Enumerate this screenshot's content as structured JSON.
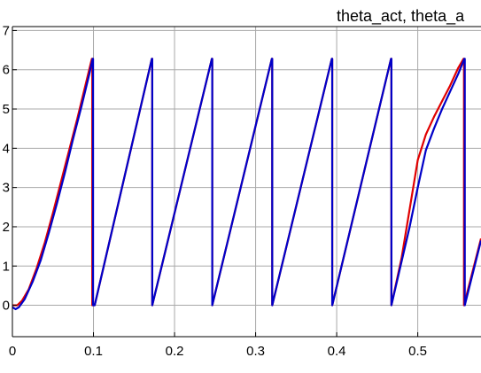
{
  "chart_data": {
    "type": "line",
    "title": "theta_act, theta_a",
    "xlabel": "",
    "ylabel": "",
    "xlim": [
      0,
      0.578
    ],
    "ylim": [
      -0.8,
      7.1
    ],
    "grid": true,
    "legend": "none",
    "x_ticks": [
      0,
      0.1,
      0.2,
      0.3,
      0.4,
      0.5
    ],
    "x_tick_labels": [
      "0",
      "0.1",
      "0.2",
      "0.3",
      "0.4",
      "0.5"
    ],
    "y_ticks": [
      0,
      1,
      2,
      3,
      4,
      5,
      6,
      7
    ],
    "y_tick_labels": [
      "0",
      "1",
      "2",
      "3",
      "4",
      "5",
      "6",
      "7"
    ],
    "series": [
      {
        "color": "#e00000",
        "x": [
          0,
          0.006,
          0.012,
          0.02,
          0.03,
          0.04,
          0.05,
          0.06,
          0.07,
          0.08,
          0.09,
          0.098,
          0.0985,
          0.0985,
          0.1015,
          0.172,
          0.1725,
          0.1725,
          0.246,
          0.2465,
          0.2465,
          0.32,
          0.3205,
          0.3205,
          0.394,
          0.3945,
          0.3945,
          0.467,
          0.4675,
          0.4675,
          0.48,
          0.5,
          0.51,
          0.52,
          0.53,
          0.54,
          0.55,
          0.5565,
          0.557,
          0.557,
          0.578
        ],
        "y": [
          0.0,
          0.0,
          0.12,
          0.4,
          0.95,
          1.6,
          2.35,
          3.15,
          3.95,
          4.75,
          5.6,
          6.28,
          6.28,
          0.0,
          0.0,
          6.28,
          6.28,
          0.0,
          6.28,
          6.28,
          0.0,
          6.28,
          6.28,
          0.0,
          6.28,
          6.28,
          0.0,
          6.28,
          6.28,
          0.0,
          1.2,
          3.7,
          4.35,
          4.8,
          5.2,
          5.6,
          6.05,
          6.28,
          6.28,
          0.0,
          1.7
        ]
      },
      {
        "color": "#0000c8",
        "x": [
          0,
          0.004,
          0.008,
          0.015,
          0.025,
          0.035,
          0.045,
          0.055,
          0.065,
          0.075,
          0.085,
          0.095,
          0.099,
          0.0995,
          0.0995,
          0.1015,
          0.172,
          0.1725,
          0.1725,
          0.246,
          0.2465,
          0.2465,
          0.32,
          0.3205,
          0.3205,
          0.394,
          0.3945,
          0.3945,
          0.467,
          0.4675,
          0.4675,
          0.49,
          0.5,
          0.51,
          0.52,
          0.53,
          0.54,
          0.55,
          0.5575,
          0.558,
          0.558,
          0.578
        ],
        "y": [
          -0.05,
          -0.1,
          -0.05,
          0.15,
          0.6,
          1.15,
          1.85,
          2.6,
          3.4,
          4.25,
          5.05,
          5.9,
          6.28,
          6.28,
          0.0,
          0.0,
          6.28,
          6.28,
          0.0,
          6.28,
          6.28,
          0.0,
          6.28,
          6.28,
          0.0,
          6.28,
          6.28,
          0.0,
          6.28,
          6.28,
          0.0,
          2.0,
          3.0,
          3.95,
          4.5,
          5.0,
          5.45,
          5.9,
          6.28,
          6.28,
          0.0,
          1.65
        ]
      }
    ]
  }
}
